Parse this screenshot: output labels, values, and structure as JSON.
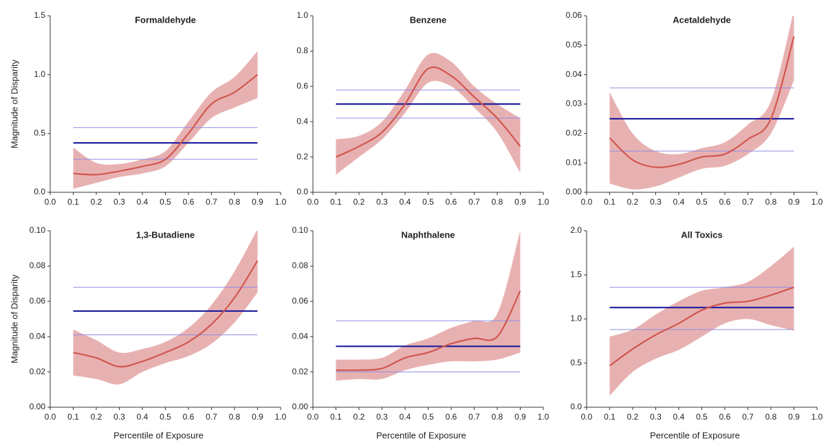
{
  "chart_data": [
    {
      "type": "line",
      "title": "Formaldehyde",
      "ylabel": "Magnitude of Disparity",
      "x": [
        0.1,
        0.2,
        0.3,
        0.4,
        0.5,
        0.6,
        0.7,
        0.8,
        0.9
      ],
      "series": [
        {
          "color": "#d0574f",
          "band_color": "#e4a3a3",
          "values": [
            0.16,
            0.15,
            0.18,
            0.22,
            0.28,
            0.5,
            0.75,
            0.85,
            1.0
          ],
          "lower": [
            0.03,
            0.08,
            0.13,
            0.16,
            0.22,
            0.42,
            0.63,
            0.72,
            0.8
          ],
          "upper": [
            0.38,
            0.25,
            0.24,
            0.28,
            0.35,
            0.6,
            0.85,
            0.98,
            1.2
          ]
        }
      ],
      "reference": {
        "value": 0.42,
        "lower": 0.28,
        "upper": 0.55,
        "color": "#1c1c9e",
        "band_color": "#8c8ce6"
      },
      "xlim": [
        0,
        1
      ],
      "xticks": [
        {
          "value": 0,
          "label": "0.0"
        },
        0.1,
        0.2,
        0.3,
        0.4,
        0.5,
        0.6,
        0.7,
        0.8,
        0.9,
        {
          "value": 1,
          "label": "1.0"
        }
      ],
      "ylim": [
        0,
        1.5
      ],
      "yticks": [
        {
          "value": 0,
          "label": "0.0"
        },
        0.5,
        {
          "value": 1,
          "label": "1.0"
        },
        1.5
      ]
    },
    {
      "type": "line",
      "title": "Benzene",
      "x": [
        0.1,
        0.2,
        0.3,
        0.4,
        0.5,
        0.6,
        0.7,
        0.8,
        0.9
      ],
      "series": [
        {
          "color": "#d0574f",
          "band_color": "#e4a3a3",
          "values": [
            0.2,
            0.26,
            0.34,
            0.5,
            0.7,
            0.66,
            0.54,
            0.42,
            0.26
          ],
          "lower": [
            0.1,
            0.2,
            0.3,
            0.45,
            0.62,
            0.6,
            0.48,
            0.34,
            0.11
          ],
          "upper": [
            0.3,
            0.32,
            0.4,
            0.58,
            0.78,
            0.74,
            0.6,
            0.5,
            0.42
          ]
        }
      ],
      "reference": {
        "value": 0.5,
        "lower": 0.42,
        "upper": 0.58,
        "color": "#1c1c9e",
        "band_color": "#8c8ce6"
      },
      "xlim": [
        0,
        1
      ],
      "xticks": [
        {
          "value": 0,
          "label": "0.0"
        },
        0.1,
        0.2,
        0.3,
        0.4,
        0.5,
        0.6,
        0.7,
        0.8,
        0.9,
        {
          "value": 1,
          "label": "1.0"
        }
      ],
      "ylim": [
        0,
        1
      ],
      "yticks": [
        {
          "value": 0,
          "label": "0.0"
        },
        0.2,
        0.4,
        0.6,
        0.8,
        {
          "value": 1,
          "label": "1.0"
        }
      ]
    },
    {
      "type": "line",
      "title": "Acetaldehyde",
      "x": [
        0.1,
        0.2,
        0.3,
        0.4,
        0.5,
        0.6,
        0.7,
        0.8,
        0.9
      ],
      "series": [
        {
          "color": "#d0574f",
          "band_color": "#e4a3a3",
          "values": [
            0.0185,
            0.011,
            0.0085,
            0.0095,
            0.012,
            0.013,
            0.018,
            0.025,
            0.053
          ],
          "lower": [
            0.003,
            0.001,
            0.002,
            0.005,
            0.008,
            0.009,
            0.013,
            0.02,
            0.038
          ],
          "upper": [
            0.034,
            0.02,
            0.014,
            0.013,
            0.015,
            0.017,
            0.023,
            0.031,
            0.062
          ]
        }
      ],
      "reference": {
        "value": 0.025,
        "lower": 0.014,
        "upper": 0.0355,
        "color": "#1c1c9e",
        "band_color": "#8c8ce6"
      },
      "xlim": [
        0,
        1
      ],
      "xticks": [
        {
          "value": 0,
          "label": "0.0"
        },
        0.1,
        0.2,
        0.3,
        0.4,
        0.5,
        0.6,
        0.7,
        0.8,
        0.9,
        {
          "value": 1,
          "label": "1.0"
        }
      ],
      "ylim": [
        0,
        0.06
      ],
      "yticks": [
        {
          "value": 0,
          "label": "0.00"
        },
        0.01,
        0.02,
        0.03,
        0.04,
        0.05,
        0.06
      ]
    },
    {
      "type": "line",
      "title": "1,3-Butadiene",
      "ylabel": "Magnitude of Disparity",
      "xlabel": "Percentile of Exposure",
      "x": [
        0.1,
        0.2,
        0.3,
        0.4,
        0.5,
        0.6,
        0.7,
        0.8,
        0.9
      ],
      "series": [
        {
          "color": "#d0574f",
          "band_color": "#e4a3a3",
          "values": [
            0.031,
            0.028,
            0.023,
            0.026,
            0.031,
            0.037,
            0.047,
            0.062,
            0.083
          ],
          "lower": [
            0.018,
            0.016,
            0.013,
            0.02,
            0.025,
            0.029,
            0.036,
            0.048,
            0.065
          ],
          "upper": [
            0.044,
            0.038,
            0.031,
            0.033,
            0.037,
            0.045,
            0.058,
            0.077,
            0.101
          ]
        }
      ],
      "reference": {
        "value": 0.0545,
        "lower": 0.041,
        "upper": 0.068,
        "color": "#1c1c9e",
        "band_color": "#8c8ce6"
      },
      "xlim": [
        0,
        1
      ],
      "xticks": [
        {
          "value": 0,
          "label": "0.0"
        },
        0.1,
        0.2,
        0.3,
        0.4,
        0.5,
        0.6,
        0.7,
        0.8,
        0.9,
        {
          "value": 1,
          "label": "1.0"
        }
      ],
      "ylim": [
        0,
        0.1
      ],
      "yticks": [
        {
          "value": 0,
          "label": "0.00"
        },
        0.02,
        0.04,
        0.06,
        0.08,
        {
          "value": 0.1,
          "label": "0.10"
        }
      ]
    },
    {
      "type": "line",
      "title": "Naphthalene",
      "xlabel": "Percentile of Exposure",
      "x": [
        0.1,
        0.2,
        0.3,
        0.4,
        0.5,
        0.6,
        0.7,
        0.8,
        0.9
      ],
      "series": [
        {
          "color": "#d0574f",
          "band_color": "#e4a3a3",
          "values": [
            0.021,
            0.021,
            0.022,
            0.028,
            0.031,
            0.036,
            0.039,
            0.04,
            0.066
          ],
          "lower": [
            0.015,
            0.016,
            0.016,
            0.021,
            0.024,
            0.026,
            0.026,
            0.027,
            0.031
          ],
          "upper": [
            0.027,
            0.027,
            0.028,
            0.035,
            0.039,
            0.045,
            0.049,
            0.053,
            0.1
          ]
        }
      ],
      "reference": {
        "value": 0.0345,
        "lower": 0.02,
        "upper": 0.049,
        "color": "#1c1c9e",
        "band_color": "#8c8ce6"
      },
      "xlim": [
        0,
        1
      ],
      "xticks": [
        {
          "value": 0,
          "label": "0.0"
        },
        0.1,
        0.2,
        0.3,
        0.4,
        0.5,
        0.6,
        0.7,
        0.8,
        0.9,
        {
          "value": 1,
          "label": "1.0"
        }
      ],
      "ylim": [
        0,
        0.1
      ],
      "yticks": [
        {
          "value": 0,
          "label": "0.00"
        },
        0.02,
        0.04,
        0.06,
        0.08,
        {
          "value": 0.1,
          "label": "0.10"
        }
      ]
    },
    {
      "type": "line",
      "title": "All Toxics",
      "xlabel": "Percentile of Exposure",
      "x": [
        0.1,
        0.2,
        0.3,
        0.4,
        0.5,
        0.6,
        0.7,
        0.8,
        0.9
      ],
      "series": [
        {
          "color": "#d0574f",
          "band_color": "#e4a3a3",
          "values": [
            0.47,
            0.66,
            0.82,
            0.95,
            1.1,
            1.18,
            1.2,
            1.27,
            1.36
          ],
          "lower": [
            0.13,
            0.4,
            0.55,
            0.65,
            0.8,
            0.95,
            1.0,
            0.93,
            0.87
          ],
          "upper": [
            0.8,
            0.88,
            1.05,
            1.2,
            1.32,
            1.36,
            1.42,
            1.6,
            1.82
          ]
        }
      ],
      "reference": {
        "value": 1.13,
        "lower": 0.88,
        "upper": 1.36,
        "color": "#1c1c9e",
        "band_color": "#8c8ce6"
      },
      "xlim": [
        0,
        1
      ],
      "xticks": [
        {
          "value": 0,
          "label": "0.0"
        },
        0.1,
        0.2,
        0.3,
        0.4,
        0.5,
        0.6,
        0.7,
        0.8,
        0.9,
        {
          "value": 1,
          "label": "1.0"
        }
      ],
      "ylim": [
        0,
        2
      ],
      "yticks": [
        {
          "value": 0,
          "label": "0.0"
        },
        0.5,
        {
          "value": 1,
          "label": "1.0"
        },
        1.5,
        {
          "value": 2,
          "label": "2.0"
        }
      ]
    }
  ]
}
